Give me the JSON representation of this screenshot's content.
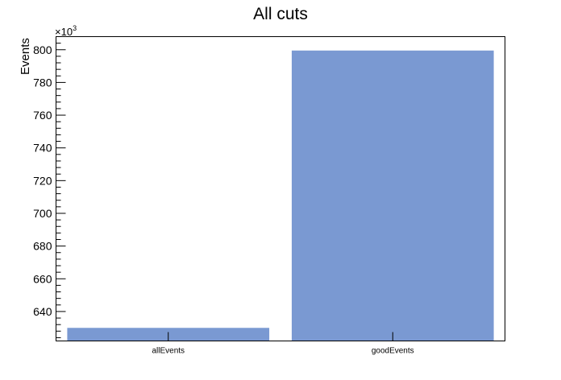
{
  "chart_data": {
    "type": "bar",
    "title": "All cuts",
    "ylabel": "Events",
    "xlabel": "",
    "axis_multiplier": {
      "base": "×10",
      "exponent": "3"
    },
    "categories": [
      "allEvents",
      "goodEvents"
    ],
    "values": [
      630,
      799.5
    ],
    "ylim": [
      622,
      808
    ],
    "yticks": [
      640,
      660,
      680,
      700,
      720,
      740,
      760,
      780,
      800
    ],
    "y_minor_step": 4,
    "grid": false,
    "legend": "none",
    "bar_color": "#7a99d2"
  }
}
